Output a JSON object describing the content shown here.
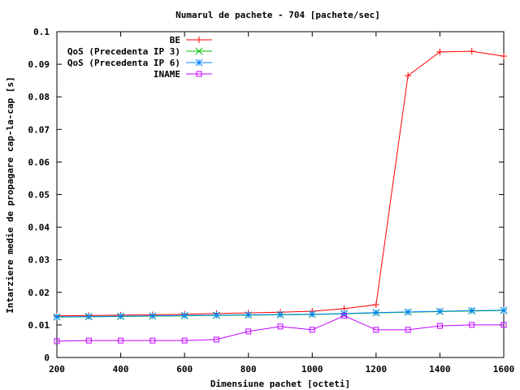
{
  "chart_data": {
    "type": "line",
    "title": "Numarul de pachete - 704 [pachete/sec]",
    "xlabel": "Dimensiune pachet [octeti]",
    "ylabel": "Intarziere medie de propagare cap-la-cap [s]",
    "xlim": [
      200,
      1600
    ],
    "ylim": [
      0,
      0.1
    ],
    "x_ticks": [
      "200",
      "400",
      "600",
      "800",
      "1000",
      "1200",
      "1400",
      "1600"
    ],
    "y_ticks": [
      "0",
      "0.01",
      "0.02",
      "0.03",
      "0.04",
      "0.05",
      "0.06",
      "0.07",
      "0.08",
      "0.09",
      "0.1"
    ],
    "grid": false,
    "legend_position": "top-left",
    "x": [
      200,
      300,
      400,
      500,
      600,
      700,
      800,
      900,
      1000,
      1100,
      1200,
      1300,
      1400,
      1500,
      1600
    ],
    "series": [
      {
        "name": "BE",
        "color": "#ff0000",
        "marker": "plus",
        "values": [
          0.0128,
          0.0129,
          0.013,
          0.0131,
          0.0133,
          0.0135,
          0.0137,
          0.0139,
          0.0142,
          0.015,
          0.0162,
          0.0865,
          0.0938,
          0.094,
          0.0925
        ]
      },
      {
        "name": "QoS (Precedenta IP 3)",
        "color": "#00c000",
        "marker": "cross",
        "values": [
          0.0124,
          0.0125,
          0.0126,
          0.0127,
          0.0128,
          0.0129,
          0.013,
          0.0131,
          0.0132,
          0.0134,
          0.0137,
          0.0139,
          0.0141,
          0.0143,
          0.0144
        ]
      },
      {
        "name": "QoS (Precedenta IP 6)",
        "color": "#0080ff",
        "marker": "star",
        "values": [
          0.0125,
          0.0126,
          0.0127,
          0.0128,
          0.0129,
          0.013,
          0.0131,
          0.0132,
          0.0133,
          0.0135,
          0.0138,
          0.014,
          0.0142,
          0.0144,
          0.0145
        ]
      },
      {
        "name": "INAME",
        "color": "#c000ff",
        "marker": "square",
        "values": [
          0.005,
          0.0052,
          0.0052,
          0.0052,
          0.0052,
          0.0055,
          0.008,
          0.0095,
          0.0085,
          0.0128,
          0.0085,
          0.0085,
          0.0097,
          0.01,
          0.01
        ]
      }
    ]
  }
}
